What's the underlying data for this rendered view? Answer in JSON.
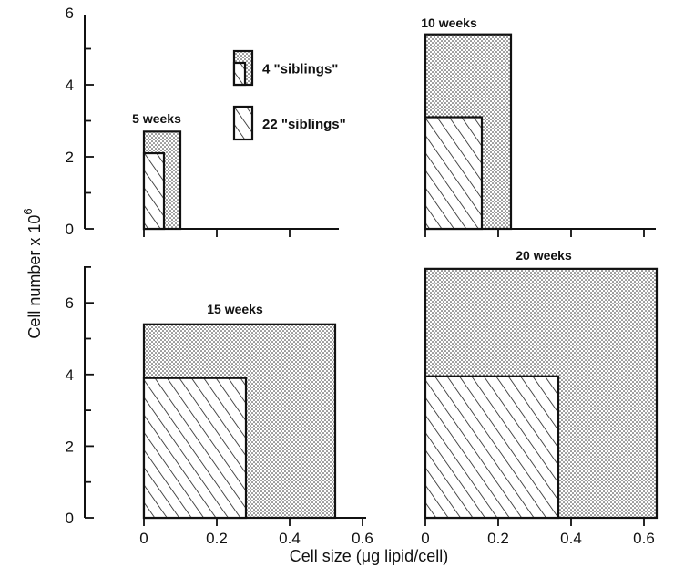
{
  "chart_data": {
    "type": "bar",
    "xlabel": "Cell size (μg lipid/cell)",
    "ylabel_main": "Cell number x 10",
    "ylabel_exp": "6",
    "legend": [
      {
        "label": "4 \"siblings\"",
        "pattern": "dotted"
      },
      {
        "label": "22 \"siblings\"",
        "pattern": "hatched"
      }
    ],
    "x_ticks": [
      0,
      0.2,
      0.4,
      0.6
    ],
    "x_tick_labels": [
      "0",
      "0.2",
      "0.4",
      "0.6"
    ],
    "panels": [
      {
        "title": "5 weeks",
        "ylim": [
          0,
          6
        ],
        "y_ticks": [
          0,
          2,
          4,
          6
        ],
        "y_tick_labels": [
          "0",
          "2",
          "4",
          "6"
        ],
        "series": [
          {
            "name": "4 \"siblings\"",
            "cell_size": 0.1,
            "cell_number": 2.7
          },
          {
            "name": "22 \"siblings\"",
            "cell_size": 0.055,
            "cell_number": 2.1
          }
        ]
      },
      {
        "title": "10 weeks",
        "ylim": [
          0,
          6
        ],
        "y_ticks": [
          0,
          2,
          4,
          6
        ],
        "y_tick_labels": [],
        "series": [
          {
            "name": "4 \"siblings\"",
            "cell_size": 0.235,
            "cell_number": 5.4
          },
          {
            "name": "22 \"siblings\"",
            "cell_size": 0.155,
            "cell_number": 3.1
          }
        ]
      },
      {
        "title": "15 weeks",
        "ylim": [
          0,
          7
        ],
        "y_ticks": [
          0,
          2,
          4,
          6
        ],
        "y_tick_labels": [
          "0",
          "2",
          "4",
          "6"
        ],
        "series": [
          {
            "name": "4 \"siblings\"",
            "cell_size": 0.525,
            "cell_number": 5.4
          },
          {
            "name": "22 \"siblings\"",
            "cell_size": 0.28,
            "cell_number": 3.9
          }
        ]
      },
      {
        "title": "20 weeks",
        "ylim": [
          0,
          7
        ],
        "y_ticks": [
          0,
          2,
          4,
          6
        ],
        "y_tick_labels": [],
        "series": [
          {
            "name": "4 \"siblings\"",
            "cell_size": 0.635,
            "cell_number": 6.95
          },
          {
            "name": "22 \"siblings\"",
            "cell_size": 0.365,
            "cell_number": 3.95
          }
        ]
      }
    ]
  }
}
